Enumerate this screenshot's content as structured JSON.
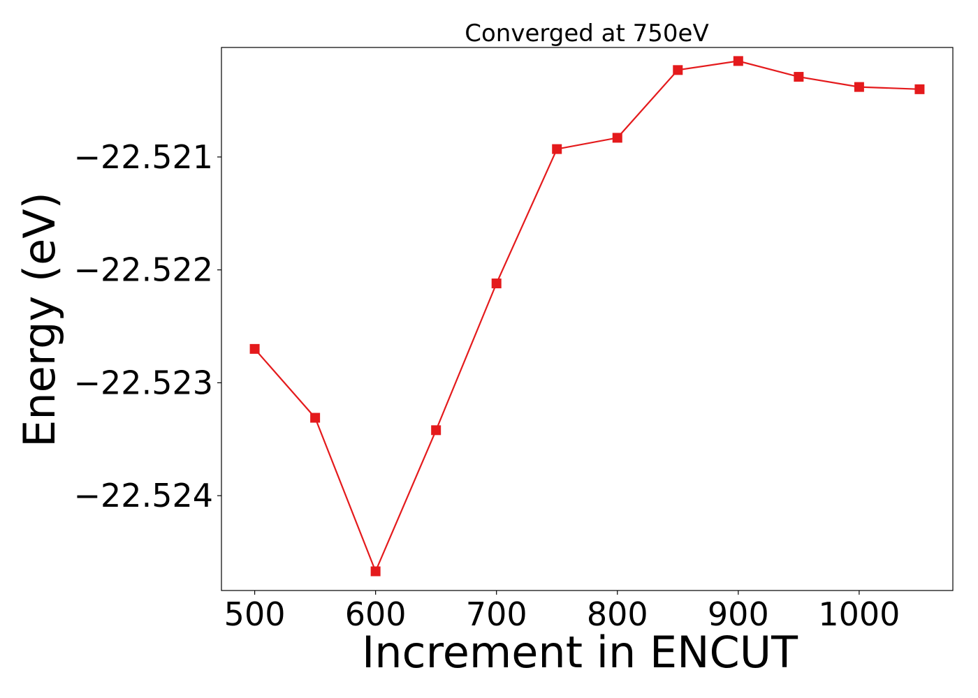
{
  "chart_data": {
    "type": "line",
    "title": "Converged at 750eV",
    "xlabel": "Increment in ENCUT",
    "ylabel": "Energy (eV)",
    "xlim": [
      472.5,
      1077.5
    ],
    "ylim": [
      -22.52484,
      -22.52003
    ],
    "xticks": [
      500,
      600,
      700,
      800,
      900,
      1000
    ],
    "xtick_labels": [
      "500",
      "600",
      "700",
      "800",
      "900",
      "1000"
    ],
    "yticks": [
      -22.521,
      -22.522,
      -22.523,
      -22.524
    ],
    "ytick_labels": [
      "−22.521",
      "−22.522",
      "−22.523",
      "−22.524"
    ],
    "grid": false,
    "series": [
      {
        "color": "#e41a1c",
        "marker": "square",
        "x": [
          500,
          550,
          600,
          650,
          700,
          750,
          800,
          850,
          900,
          950,
          1000,
          1050
        ],
        "y": [
          -22.5227,
          -22.52331,
          -22.52467,
          -22.52342,
          -22.52212,
          -22.52093,
          -22.52083,
          -22.52023,
          -22.52015,
          -22.52029,
          -22.52038,
          -22.5204
        ]
      }
    ]
  }
}
